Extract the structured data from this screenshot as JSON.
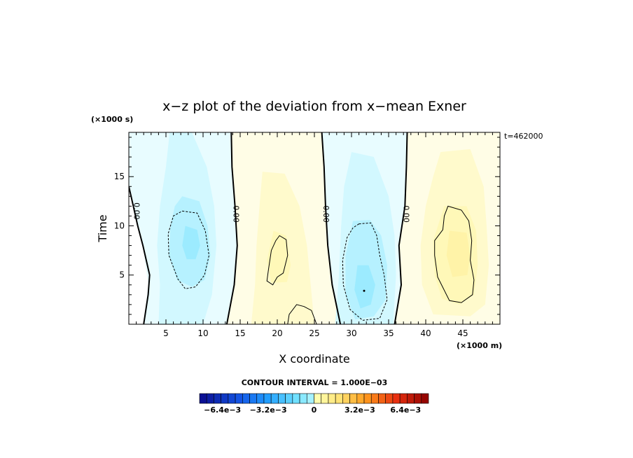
{
  "chart_data": {
    "type": "heatmap",
    "title": "x−z plot of the deviation from x−mean Exner",
    "xlabel": "X coordinate",
    "ylabel": "Time",
    "x_unit": "(×1000 m)",
    "y_unit": "(×1000 s)",
    "time_label": "t=462000",
    "xlim": [
      0,
      50
    ],
    "ylim": [
      0,
      19.5
    ],
    "x_ticks": [
      5,
      10,
      15,
      20,
      25,
      30,
      35,
      40,
      45
    ],
    "y_ticks": [
      5,
      10,
      15
    ],
    "contour_interval_text": "CONTOUR INTERVAL = 1.000E−03",
    "zero_contour_label": "0.00",
    "zero_contour_centers_x": [
      2,
      14.3,
      26.5,
      37.5
    ],
    "field_extrema": [
      {
        "x": 8.5,
        "y": 8,
        "value": -0.0017
      },
      {
        "x": 20,
        "y": 7,
        "value": 0.0012
      },
      {
        "x": 31.5,
        "y": 5,
        "value": -0.0022
      },
      {
        "x": 44,
        "y": 8,
        "value": 0.0014
      }
    ],
    "colorbar": {
      "range": [
        -0.008,
        0.008
      ],
      "levels": 32,
      "tick_labels": [
        "−6.4e−3",
        "−3.2e−3",
        "0",
        "3.2e−3",
        "6.4e−3"
      ],
      "tick_values": [
        -0.0064,
        -0.0032,
        0,
        0.0032,
        0.0064
      ]
    },
    "colors": {
      "neg_extreme": "#0a0a8c",
      "neg_mid": "#22a0ff",
      "neg_light": "#aaf2ff",
      "zero": "#ffffff",
      "pos_light": "#ffffb0",
      "pos_mid": "#ff9e1e",
      "pos_extreme": "#8c0000"
    }
  }
}
